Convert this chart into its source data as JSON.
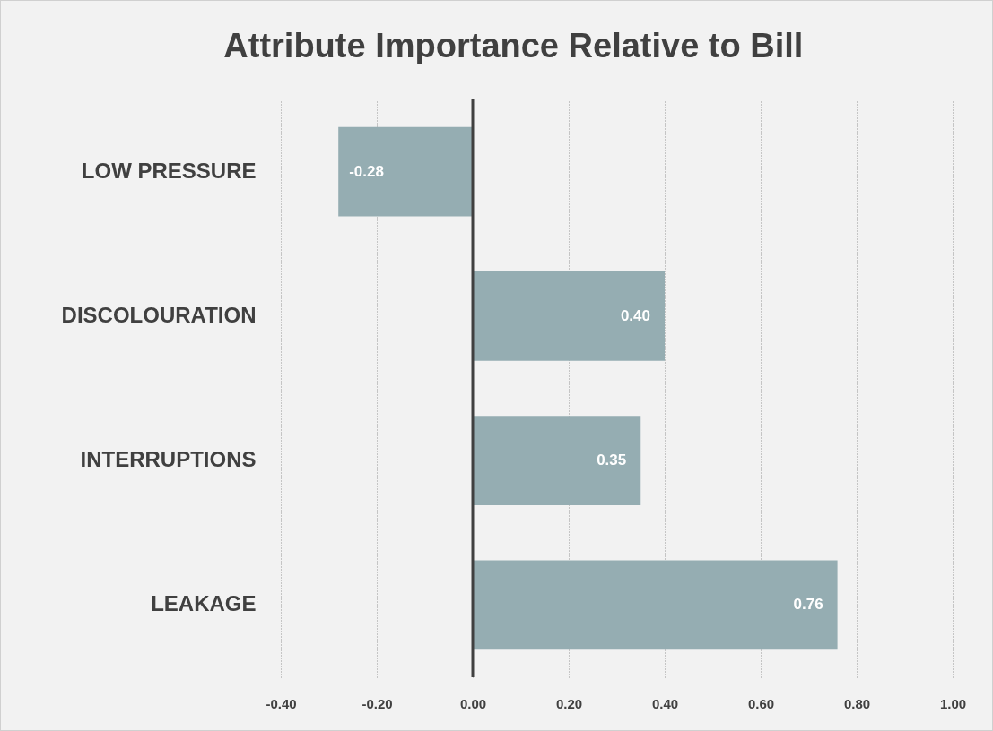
{
  "chart_data": {
    "type": "bar",
    "orientation": "horizontal",
    "title": "Attribute Importance Relative to Bill",
    "categories": [
      "LOW PRESSURE",
      "DISCOLOURATION",
      "INTERRUPTIONS",
      "LEAKAGE"
    ],
    "values": [
      -0.28,
      0.4,
      0.35,
      0.76
    ],
    "color": "#95adb2",
    "value_labels": [
      "-0.28",
      "0.40",
      "0.35",
      "0.76"
    ],
    "xlim": [
      -0.4,
      1.0
    ],
    "xticks": [
      {
        "value": -0.4,
        "label": "-0.40"
      },
      {
        "value": -0.2,
        "label": "-0.20"
      },
      {
        "value": 0,
        "label": "0.00"
      },
      {
        "value": 0.2,
        "label": "0.20"
      },
      {
        "value": 0.4,
        "label": "0.40"
      },
      {
        "value": 0.6,
        "label": "0.60"
      },
      {
        "value": 0.8,
        "label": "0.80"
      },
      {
        "value": 1.0,
        "label": "1.00"
      }
    ],
    "ref_lines": [
      {
        "axis": "x",
        "value": 0,
        "label": null,
        "color": "#404040"
      }
    ],
    "grid": "x"
  }
}
